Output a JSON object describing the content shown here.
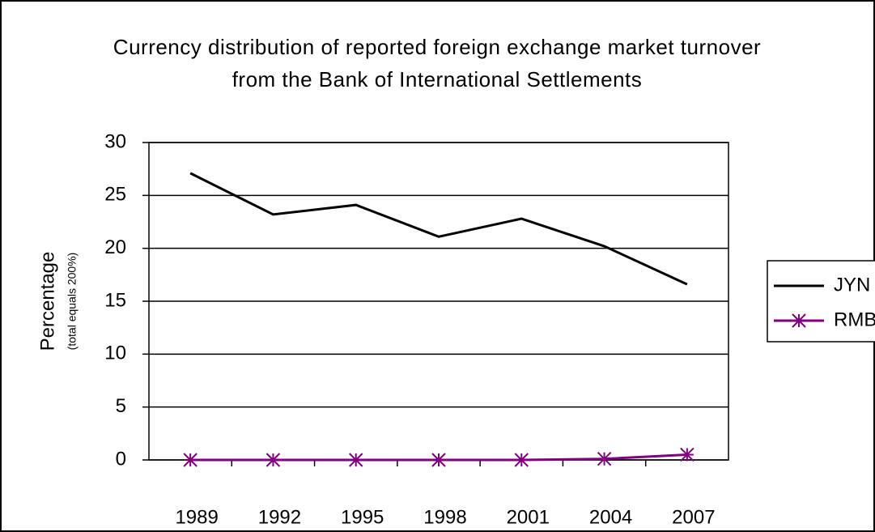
{
  "chart_data": {
    "type": "line",
    "title": "Currency distribution of reported foreign exchange market turnover from the Bank of International Settlements",
    "y_label": "Percentage",
    "y_sublabel": "(total equals 200%)",
    "categories": [
      "1989",
      "1992",
      "1995",
      "1998",
      "2001",
      "2004",
      "2007"
    ],
    "series": [
      {
        "name": "JYN",
        "color": "#000000",
        "values": [
          27.1,
          23.2,
          24.1,
          21.1,
          22.8,
          20.2,
          16.6
        ]
      },
      {
        "name": "RMB",
        "color": "#800080",
        "marker": "star",
        "values": [
          0,
          0,
          0,
          0,
          0,
          0.1,
          0.5
        ]
      }
    ],
    "ylim": [
      0,
      30
    ],
    "yticks": [
      0,
      5,
      10,
      15,
      20,
      25,
      30
    ],
    "grid": true,
    "legend": "right"
  }
}
